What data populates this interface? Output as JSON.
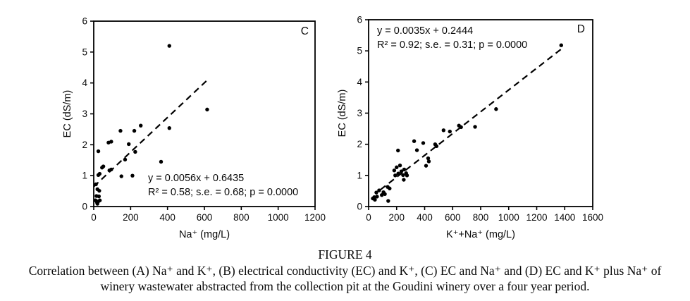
{
  "caption": {
    "title": "FIGURE 4",
    "line1": "Correlation between (A) Na⁺ and K⁺, (B) electrical conductivity (EC) and K⁺, (C) EC and Na⁺ and (D) EC and K⁺ plus Na⁺ of",
    "line2": "winery wastewater abstracted from the collection pit at the Goudini winery over a four year period."
  },
  "colors": {
    "marker": "#000000",
    "axis": "#000000",
    "background": "#ffffff"
  },
  "chart_data": [
    {
      "type": "scatter",
      "panel_label": "C",
      "xlabel": "Na⁺ (mg/L)",
      "ylabel": "EC (dS/m)",
      "xlim": [
        0,
        1200
      ],
      "ylim": [
        0,
        6
      ],
      "xticks": [
        0,
        200,
        400,
        600,
        800,
        1000,
        1200
      ],
      "yticks": [
        0,
        1,
        2,
        3,
        4,
        5,
        6
      ],
      "grid": false,
      "legend": "none",
      "equation": "y = 0.0056x + 0.6435",
      "stats": "R² = 0.58; s.e. = 0.68; p = 0.0000",
      "equation_pos": "inside-bottom-center",
      "trendline": {
        "style": "dashed",
        "slope": 0.0056,
        "intercept": 0.6435,
        "x_start": 0,
        "x_end": 612
      },
      "points": [
        [
          410,
          5.2
        ],
        [
          615,
          3.14
        ],
        [
          255,
          2.62
        ],
        [
          145,
          2.45
        ],
        [
          220,
          2.45
        ],
        [
          410,
          2.54
        ],
        [
          80,
          2.07
        ],
        [
          95,
          2.1
        ],
        [
          190,
          2.02
        ],
        [
          25,
          1.79
        ],
        [
          225,
          1.77
        ],
        [
          170,
          1.52
        ],
        [
          365,
          1.45
        ],
        [
          45,
          1.26
        ],
        [
          52,
          1.3
        ],
        [
          85,
          1.17
        ],
        [
          95,
          1.2
        ],
        [
          25,
          1.02
        ],
        [
          32,
          1.06
        ],
        [
          150,
          0.98
        ],
        [
          210,
          1.0
        ],
        [
          12,
          0.72
        ],
        [
          20,
          0.56
        ],
        [
          30,
          0.51
        ],
        [
          15,
          0.34
        ],
        [
          28,
          0.33
        ],
        [
          10,
          0.2
        ],
        [
          18,
          0.13
        ],
        [
          25,
          0.17
        ],
        [
          33,
          0.2
        ],
        [
          20,
          0.09
        ]
      ]
    },
    {
      "type": "scatter",
      "panel_label": "D",
      "xlabel": "K⁺+Na⁺ (mg/L)",
      "ylabel": "EC (dS/m)",
      "xlim": [
        0,
        1600
      ],
      "ylim": [
        0,
        6
      ],
      "xticks": [
        0,
        200,
        400,
        600,
        800,
        1000,
        1200,
        1400,
        1600
      ],
      "yticks": [
        0,
        1,
        2,
        3,
        4,
        5,
        6
      ],
      "grid": false,
      "legend": "none",
      "equation": "y = 0.0035x + 0.2444",
      "stats": "R² = 0.92; s.e. = 0.31; p = 0.0000",
      "equation_pos": "inside-top-left",
      "trendline": {
        "style": "dashed",
        "slope": 0.0035,
        "intercept": 0.2444,
        "x_start": 85,
        "x_end": 1390
      },
      "points": [
        [
          1375,
          5.18
        ],
        [
          910,
          3.13
        ],
        [
          760,
          2.56
        ],
        [
          645,
          2.6
        ],
        [
          660,
          2.55
        ],
        [
          535,
          2.45
        ],
        [
          580,
          2.41
        ],
        [
          325,
          2.1
        ],
        [
          390,
          2.04
        ],
        [
          475,
          2.0
        ],
        [
          485,
          1.94
        ],
        [
          345,
          1.81
        ],
        [
          210,
          1.8
        ],
        [
          425,
          1.55
        ],
        [
          430,
          1.45
        ],
        [
          410,
          1.31
        ],
        [
          200,
          1.26
        ],
        [
          224,
          1.32
        ],
        [
          183,
          1.16
        ],
        [
          234,
          1.13
        ],
        [
          254,
          1.19
        ],
        [
          212,
          1.06
        ],
        [
          246,
          1.01
        ],
        [
          268,
          1.07
        ],
        [
          274,
          1.0
        ],
        [
          190,
          1.0
        ],
        [
          251,
          0.86
        ],
        [
          136,
          0.63
        ],
        [
          150,
          0.58
        ],
        [
          106,
          0.46
        ],
        [
          94,
          0.37
        ],
        [
          116,
          0.4
        ],
        [
          75,
          0.52
        ],
        [
          55,
          0.45
        ],
        [
          60,
          0.32
        ],
        [
          40,
          0.3
        ],
        [
          30,
          0.26
        ],
        [
          45,
          0.22
        ],
        [
          140,
          0.18
        ]
      ]
    }
  ]
}
